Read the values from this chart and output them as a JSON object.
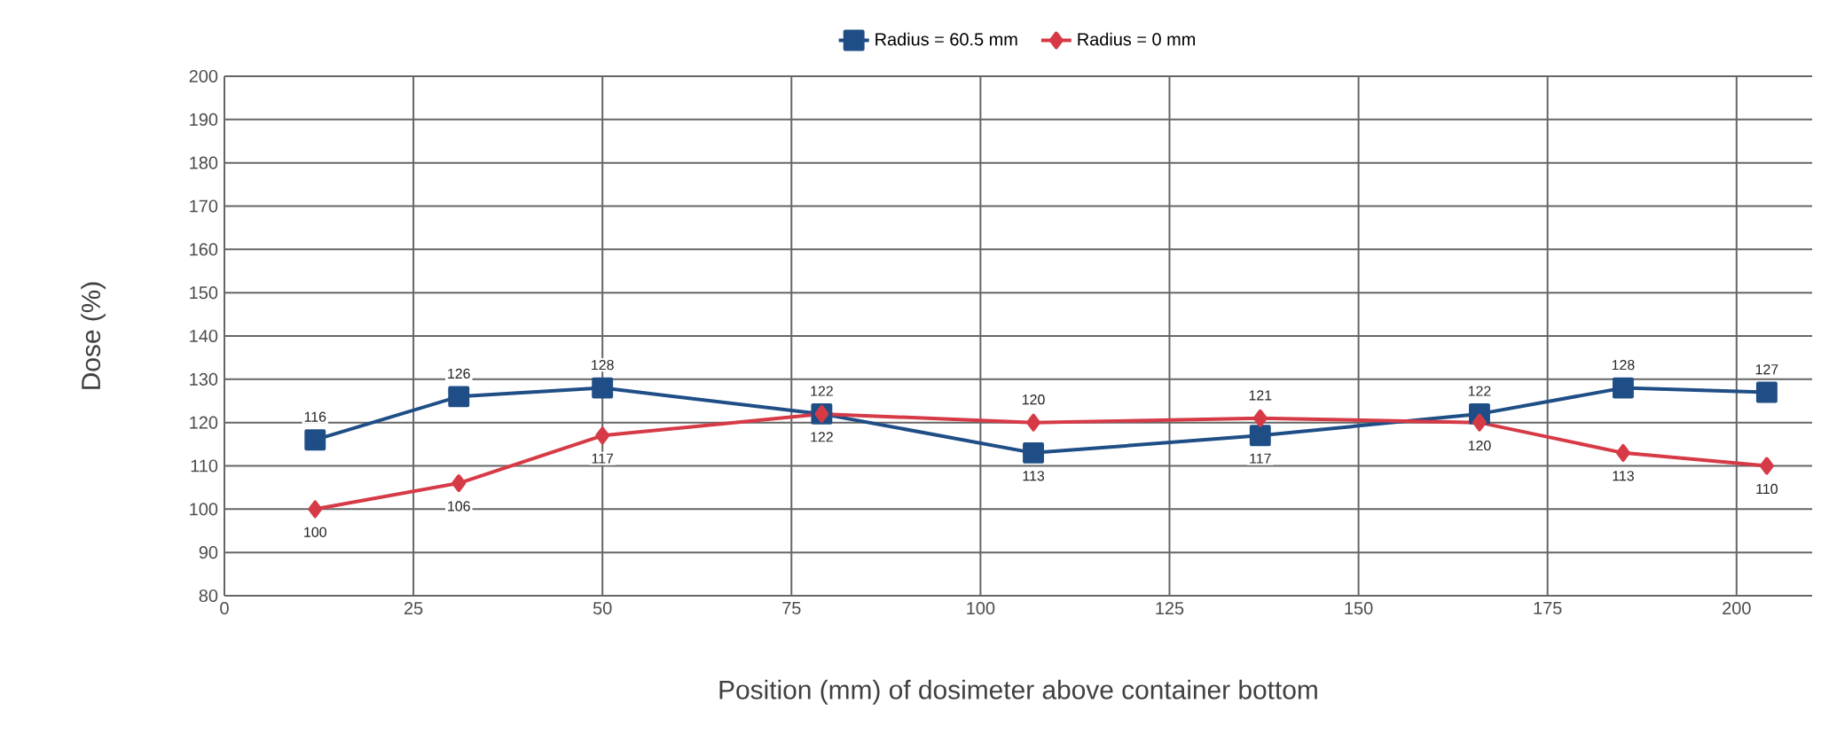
{
  "chart_data": {
    "type": "line",
    "xlabel": "Position (mm) of dosimeter above container bottom",
    "ylabel": "Dose (%)",
    "xlim": [
      0,
      210
    ],
    "xticks": [
      0,
      25,
      50,
      75,
      100,
      125,
      150,
      175,
      200
    ],
    "ylim": [
      80,
      200
    ],
    "yticks": [
      80,
      90,
      100,
      110,
      120,
      130,
      140,
      150,
      160,
      170,
      180,
      190,
      200
    ],
    "grid": true,
    "legend": "top",
    "data_labels": true,
    "series": [
      {
        "name": "Radius = 60.5 mm",
        "color": "#1f4e86",
        "marker": "square",
        "x": [
          12,
          31,
          50,
          79,
          107,
          137,
          166,
          185,
          204
        ],
        "values": [
          116,
          126,
          128,
          122,
          113,
          117,
          122,
          128,
          127
        ]
      },
      {
        "name": "Radius = 0 mm",
        "color": "#d63a46",
        "marker": "diamond",
        "x": [
          12,
          31,
          50,
          79,
          107,
          137,
          166,
          185,
          204
        ],
        "values": [
          100,
          106,
          117,
          122,
          120,
          121,
          120,
          113,
          110
        ]
      }
    ]
  }
}
